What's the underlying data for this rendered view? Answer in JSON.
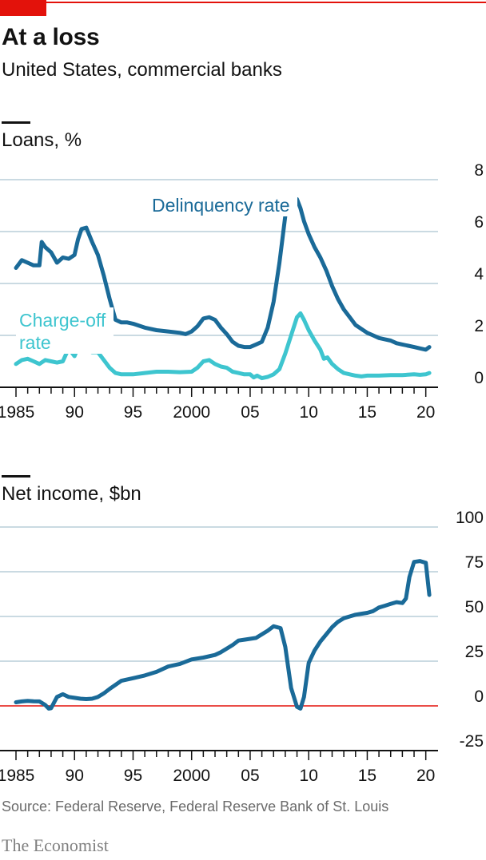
{
  "header": {
    "title": "At a loss",
    "subtitle": "United States, commercial banks"
  },
  "colors": {
    "accent_red": "#e3120b",
    "delinquency": "#1a6a98",
    "charge_off": "#3ec5cf",
    "net_income": "#1a6a98",
    "gridline": "#b9cdd8",
    "zero_line_red": "#e3120b"
  },
  "chart_data": [
    {
      "type": "line",
      "title": "Loans, %",
      "x_ticks": [
        "1985",
        "90",
        "95",
        "2000",
        "05",
        "10",
        "15",
        "20"
      ],
      "y_ticks": [
        "8",
        "6",
        "4",
        "2",
        "0"
      ],
      "xlim": [
        1985,
        2020.5
      ],
      "ylim": [
        0,
        8
      ],
      "grid": true,
      "series": [
        {
          "name": "Delinquency rate",
          "color": "#1a6a98",
          "x": [
            1985.0,
            1985.5,
            1986.0,
            1986.5,
            1987.0,
            1987.2,
            1987.5,
            1988.0,
            1988.5,
            1989.0,
            1989.5,
            1990.0,
            1990.3,
            1990.6,
            1991.0,
            1991.5,
            1992.0,
            1992.5,
            1993.0,
            1993.5,
            1994.0,
            1994.5,
            1995.0,
            1996.0,
            1997.0,
            1998.0,
            1999.0,
            1999.5,
            2000.0,
            2000.5,
            2001.0,
            2001.5,
            2002.0,
            2002.5,
            2003.0,
            2003.5,
            2004.0,
            2004.5,
            2005.0,
            2005.5,
            2006.0,
            2006.5,
            2007.0,
            2007.5,
            2008.0,
            2008.5,
            2009.0,
            2009.3,
            2009.6,
            2010.0,
            2010.5,
            2011.0,
            2011.5,
            2012.0,
            2012.5,
            2013.0,
            2013.5,
            2014.0,
            2014.5,
            2015.0,
            2015.5,
            2016.0,
            2016.5,
            2017.0,
            2017.5,
            2018.0,
            2018.5,
            2019.0,
            2019.5,
            2020.0,
            2020.3
          ],
          "values": [
            4.6,
            4.9,
            4.8,
            4.7,
            4.7,
            5.6,
            5.4,
            5.2,
            4.8,
            5.0,
            4.95,
            5.1,
            5.7,
            6.1,
            6.15,
            5.6,
            5.1,
            4.3,
            3.4,
            2.6,
            2.5,
            2.5,
            2.45,
            2.3,
            2.2,
            2.15,
            2.1,
            2.05,
            2.15,
            2.35,
            2.65,
            2.7,
            2.6,
            2.3,
            2.05,
            1.75,
            1.6,
            1.55,
            1.55,
            1.65,
            1.75,
            2.3,
            3.3,
            4.8,
            6.6,
            7.35,
            7.25,
            6.9,
            6.4,
            5.9,
            5.4,
            5.0,
            4.5,
            3.9,
            3.4,
            3.0,
            2.7,
            2.4,
            2.25,
            2.1,
            2.0,
            1.9,
            1.85,
            1.8,
            1.7,
            1.65,
            1.6,
            1.55,
            1.5,
            1.45,
            1.55
          ]
        },
        {
          "name": "Charge-off rate",
          "color": "#3ec5cf",
          "x": [
            1985.0,
            1985.5,
            1986.0,
            1986.5,
            1987.0,
            1987.5,
            1988.0,
            1988.5,
            1989.0,
            1989.5,
            1990.0,
            1990.5,
            1991.0,
            1991.5,
            1992.0,
            1992.5,
            1993.0,
            1993.5,
            1994.0,
            1995.0,
            1996.0,
            1997.0,
            1998.0,
            1999.0,
            2000.0,
            2000.5,
            2001.0,
            2001.5,
            2002.0,
            2002.5,
            2003.0,
            2003.5,
            2004.0,
            2004.5,
            2005.0,
            2005.3,
            2005.6,
            2006.0,
            2006.5,
            2007.0,
            2007.5,
            2008.0,
            2008.5,
            2009.0,
            2009.3,
            2009.6,
            2010.0,
            2010.5,
            2011.0,
            2011.3,
            2011.6,
            2012.0,
            2012.5,
            2013.0,
            2013.5,
            2014.0,
            2014.5,
            2015.0,
            2016.0,
            2017.0,
            2018.0,
            2019.0,
            2019.5,
            2020.0,
            2020.3
          ],
          "values": [
            0.9,
            1.05,
            1.1,
            1.0,
            0.9,
            1.05,
            1.0,
            0.95,
            1.0,
            1.5,
            1.2,
            1.75,
            1.7,
            1.35,
            1.35,
            1.05,
            0.75,
            0.55,
            0.5,
            0.5,
            0.55,
            0.6,
            0.6,
            0.58,
            0.6,
            0.75,
            1.0,
            1.05,
            0.9,
            0.8,
            0.75,
            0.6,
            0.55,
            0.5,
            0.5,
            0.38,
            0.45,
            0.35,
            0.4,
            0.5,
            0.7,
            1.3,
            2.0,
            2.7,
            2.85,
            2.6,
            2.2,
            1.8,
            1.45,
            1.1,
            1.15,
            0.9,
            0.7,
            0.55,
            0.5,
            0.45,
            0.42,
            0.45,
            0.45,
            0.47,
            0.47,
            0.5,
            0.48,
            0.5,
            0.55
          ]
        }
      ],
      "annotations": {
        "delinquency_label": "Delinquency rate",
        "charge_off_label_line1": "Charge-off",
        "charge_off_label_line2": "rate"
      }
    },
    {
      "type": "line",
      "title": "Net income, $bn",
      "x_ticks": [
        "1985",
        "90",
        "95",
        "2000",
        "05",
        "10",
        "15",
        "20"
      ],
      "y_ticks": [
        "100",
        "75",
        "50",
        "25",
        "0",
        "-25"
      ],
      "xlim": [
        1985,
        2020.5
      ],
      "ylim": [
        -25,
        100
      ],
      "grid": true,
      "series": [
        {
          "color": "#1a6a98",
          "x": [
            1985.0,
            1985.5,
            1986.0,
            1986.5,
            1987.0,
            1987.5,
            1987.8,
            1988.0,
            1988.5,
            1989.0,
            1989.5,
            1990.0,
            1990.5,
            1991.0,
            1991.5,
            1992.0,
            1992.5,
            1993.0,
            1994.0,
            1995.0,
            1996.0,
            1997.0,
            1998.0,
            1999.0,
            2000.0,
            2001.0,
            2002.0,
            2002.5,
            2003.0,
            2003.5,
            2004.0,
            2004.5,
            2005.0,
            2005.5,
            2006.0,
            2006.5,
            2007.0,
            2007.3,
            2007.6,
            2008.0,
            2008.5,
            2009.0,
            2009.3,
            2009.6,
            2010.0,
            2010.5,
            2011.0,
            2011.5,
            2012.0,
            2012.5,
            2013.0,
            2013.5,
            2014.0,
            2014.5,
            2015.0,
            2015.5,
            2016.0,
            2016.5,
            2017.0,
            2017.5,
            2018.0,
            2018.3,
            2018.6,
            2019.0,
            2019.5,
            2020.0,
            2020.3
          ],
          "values": [
            2,
            2.5,
            2.8,
            2.6,
            2.5,
            0.5,
            -1.5,
            -1.3,
            5,
            6.5,
            5,
            4.5,
            4,
            3.8,
            4,
            5,
            7,
            9.5,
            14,
            15.5,
            17,
            19,
            22,
            23.5,
            26,
            27,
            28.5,
            30,
            32,
            34,
            36.5,
            37,
            37.5,
            38,
            40,
            42,
            44.5,
            44,
            43.5,
            33,
            10,
            -0.5,
            -1.5,
            5,
            24,
            31,
            36,
            40,
            44,
            47,
            49,
            50,
            51,
            51.5,
            52,
            53,
            55,
            56,
            57,
            58,
            57.5,
            60,
            72,
            80.5,
            81,
            80,
            62
          ]
        }
      ]
    }
  ],
  "source": "Source: Federal Reserve, Federal Reserve Bank of St. Louis",
  "brand": "The Economist"
}
